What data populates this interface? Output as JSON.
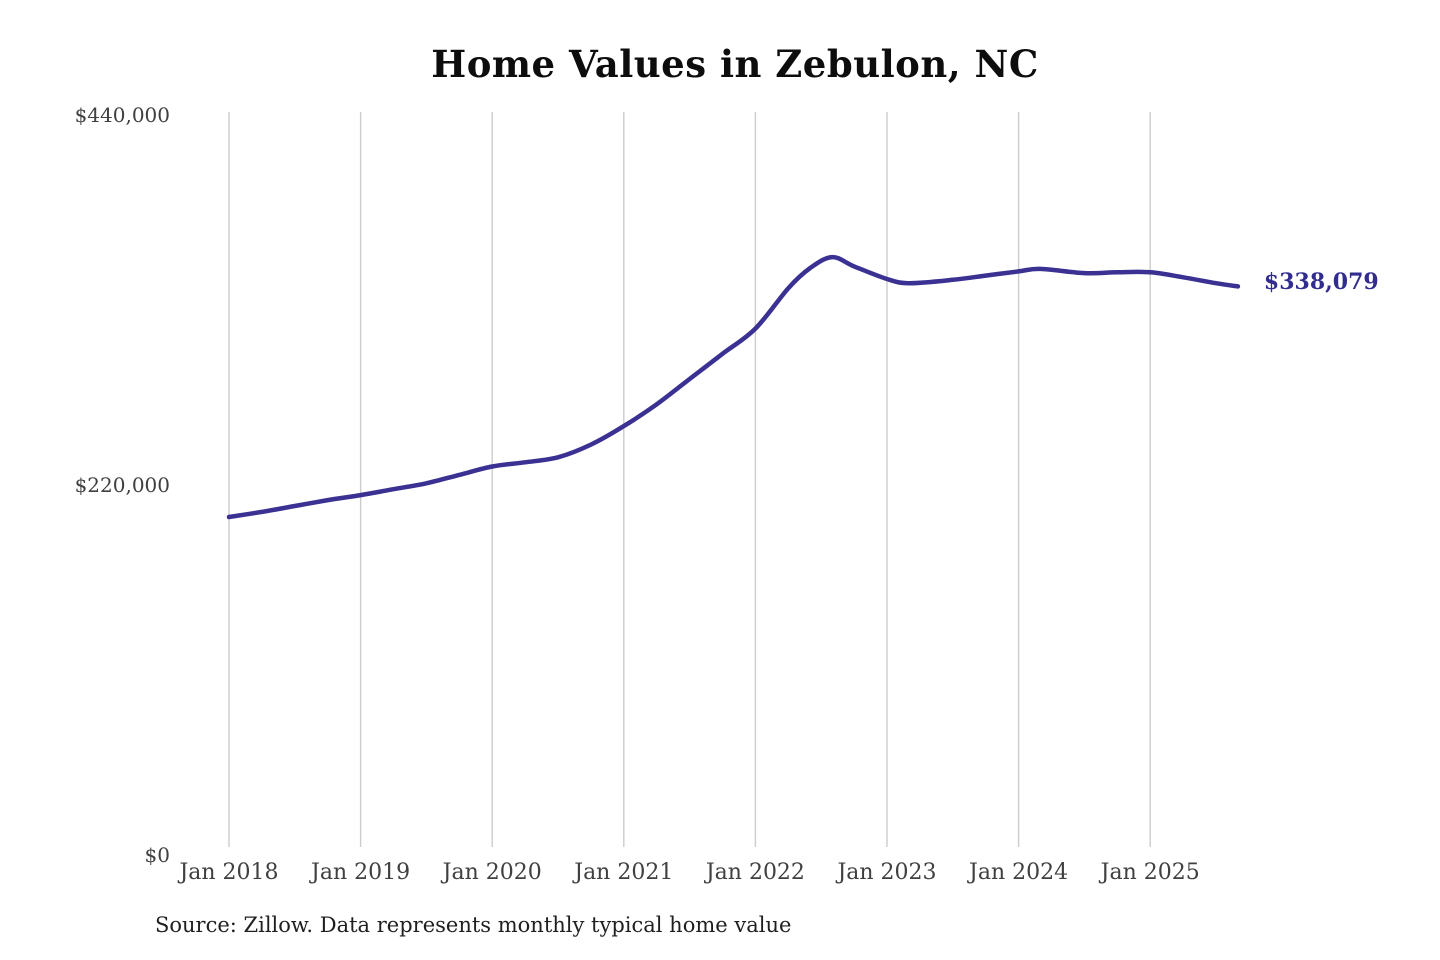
{
  "chart_data": {
    "type": "line",
    "title": "Home Values in Zebulon, NC",
    "source_note": "Source: Zillow. Data represents monthly typical home value",
    "end_label": "$338,079",
    "current_value": 338079,
    "xlabel": "",
    "ylabel": "",
    "legend": "none",
    "grid": "vertical-only",
    "ylim": [
      0,
      440000
    ],
    "y_ticks": [
      {
        "label": "$0",
        "value": 0
      },
      {
        "label": "$220,000",
        "value": 220000
      },
      {
        "label": "$440,000",
        "value": 440000
      }
    ],
    "x_ticks": [
      {
        "label": "Jan 2018",
        "date": "2018-01"
      },
      {
        "label": "Jan 2019",
        "date": "2019-01"
      },
      {
        "label": "Jan 2020",
        "date": "2020-01"
      },
      {
        "label": "Jan 2021",
        "date": "2021-01"
      },
      {
        "label": "Jan 2022",
        "date": "2022-01"
      },
      {
        "label": "Jan 2023",
        "date": "2023-01"
      },
      {
        "label": "Jan 2024",
        "date": "2024-01"
      },
      {
        "label": "Jan 2025",
        "date": "2025-01"
      }
    ],
    "series": [
      {
        "name": "Monthly typical home value",
        "points": [
          [
            "2018-01",
            201000
          ],
          [
            "2018-04",
            204000
          ],
          [
            "2018-07",
            207500
          ],
          [
            "2018-10",
            211000
          ],
          [
            "2019-01",
            214000
          ],
          [
            "2019-04",
            217500
          ],
          [
            "2019-07",
            221000
          ],
          [
            "2019-10",
            226000
          ],
          [
            "2020-01",
            231000
          ],
          [
            "2020-04",
            233500
          ],
          [
            "2020-07",
            236500
          ],
          [
            "2020-10",
            244000
          ],
          [
            "2021-01",
            255000
          ],
          [
            "2021-04",
            268000
          ],
          [
            "2021-07",
            283000
          ],
          [
            "2021-10",
            298000
          ],
          [
            "2022-01",
            313000
          ],
          [
            "2022-04",
            337000
          ],
          [
            "2022-06",
            349000
          ],
          [
            "2022-08",
            355500
          ],
          [
            "2022-10",
            350000
          ],
          [
            "2023-01",
            342500
          ],
          [
            "2023-03",
            340000
          ],
          [
            "2023-07",
            342000
          ],
          [
            "2023-10",
            344500
          ],
          [
            "2024-01",
            347000
          ],
          [
            "2024-03",
            348500
          ],
          [
            "2024-07",
            346000
          ],
          [
            "2024-10",
            346500
          ],
          [
            "2025-01",
            346500
          ],
          [
            "2025-04",
            343500
          ],
          [
            "2025-07",
            340000
          ],
          [
            "2025-09",
            338079
          ]
        ]
      }
    ]
  },
  "colors": {
    "line": "#3a3193",
    "end_label": "#322c90",
    "gridline": "#cccccc",
    "axis_text": "#404040",
    "title_text": "#0d0d0d",
    "source_text": "#1f1f1f",
    "background": "#ffffff"
  }
}
